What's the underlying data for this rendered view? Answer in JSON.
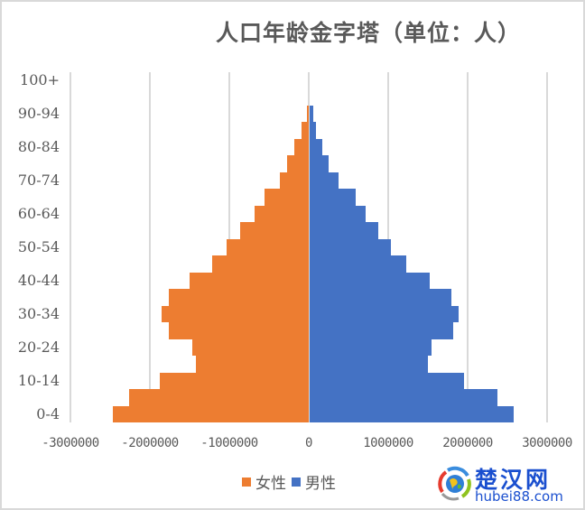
{
  "chart_data": {
    "type": "bar",
    "orientation": "horizontal",
    "subtype": "population-pyramid",
    "title": "人口年龄金字塔（单位：人）",
    "xlabel": "",
    "ylabel": "",
    "xlim": [
      -3000000,
      3000000
    ],
    "x_ticks": [
      -3000000,
      -2000000,
      -1000000,
      0,
      1000000,
      2000000,
      3000000
    ],
    "x_tick_labels": [
      "-3000000",
      "-2000000",
      "-1000000",
      "0",
      "1000000",
      "2000000",
      "3000000"
    ],
    "grid": "vertical",
    "legend_position": "bottom",
    "categories": [
      "0-4",
      "5-9",
      "10-14",
      "15-19",
      "20-24",
      "25-29",
      "30-34",
      "35-39",
      "40-44",
      "45-49",
      "50-54",
      "55-59",
      "60-64",
      "65-69",
      "70-74",
      "75-79",
      "80-84",
      "85-89",
      "90-94",
      "95-99",
      "100+"
    ],
    "visible_category_labels": [
      "0-4",
      "10-14",
      "20-24",
      "30-34",
      "40-44",
      "50-54",
      "60-64",
      "70-74",
      "80-84",
      "90-94",
      "100+"
    ],
    "series": [
      {
        "name": "女性",
        "color": "#ed7d31",
        "values": [
          -2470000,
          -2260000,
          -1880000,
          -1420000,
          -1470000,
          -1760000,
          -1850000,
          -1760000,
          -1500000,
          -1220000,
          -1030000,
          -860000,
          -680000,
          -560000,
          -360000,
          -270000,
          -180000,
          -90000,
          -20000,
          0,
          0
        ]
      },
      {
        "name": "男性",
        "color": "#4472c4",
        "values": [
          2570000,
          2360000,
          1940000,
          1490000,
          1530000,
          1810000,
          1880000,
          1780000,
          1510000,
          1220000,
          1020000,
          860000,
          700000,
          580000,
          360000,
          240000,
          160000,
          80000,
          40000,
          0,
          0
        ]
      }
    ]
  },
  "title": "人口年龄金字塔（单位：人）",
  "axis": {
    "y_labels": [
      "0-4",
      "10-14",
      "20-24",
      "30-34",
      "40-44",
      "50-54",
      "60-64",
      "70-74",
      "80-84",
      "90-94",
      "100+"
    ],
    "x_labels": [
      "-3000000",
      "-2000000",
      "-1000000",
      "0",
      "1000000",
      "2000000",
      "3000000"
    ]
  },
  "legend": {
    "female_label": "女性",
    "male_label": "男性",
    "female_color": "#ed7d31",
    "male_color": "#4472c4"
  },
  "watermark": {
    "name_cn": "楚汉网",
    "domain": "hubei88.com"
  }
}
